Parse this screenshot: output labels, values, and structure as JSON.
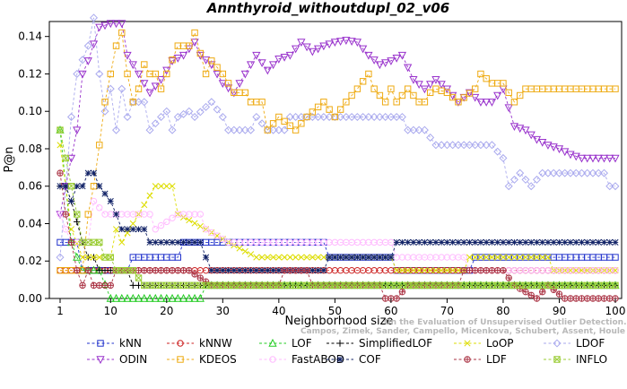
{
  "chart_data": {
    "type": "line",
    "title": "Annthyroid_withoutdupl_02_v06",
    "xlabel": "Neighborhood size",
    "ylabel": "P@n",
    "xlim": [
      1,
      100
    ],
    "ylim": [
      0,
      0.148
    ],
    "xticks": [
      1,
      10,
      20,
      30,
      40,
      50,
      60,
      70,
      80,
      90,
      100
    ],
    "yticks": [
      0.0,
      0.02,
      0.04,
      0.06,
      0.08,
      0.1,
      0.12,
      0.14
    ],
    "ytick_labels": [
      "0.00",
      "0.02",
      "0.04",
      "0.06",
      "0.08",
      "0.10",
      "0.12",
      "0.14"
    ],
    "grid": false,
    "legend_position": "bottom",
    "watermark": [
      "Campos, Zimek, Sander, Campello, Micenkova, Schubert, Assent, Houle",
      "On the Evaluation of Unsupervised Outlier Detection. DAMI, 2015."
    ],
    "series": [
      {
        "name": "kNN",
        "color": "#2233cc",
        "marker": "square",
        "points": [
          [
            1,
            0.03
          ],
          [
            4,
            0.03
          ],
          [
            5,
            0.015
          ],
          [
            13,
            0.015
          ],
          [
            14,
            0.022
          ],
          [
            22,
            0.022
          ],
          [
            23,
            0.03
          ],
          [
            48,
            0.03
          ],
          [
            49,
            0.022
          ],
          [
            60,
            0.022
          ],
          [
            61,
            0.015
          ],
          [
            74,
            0.015
          ],
          [
            75,
            0.022
          ],
          [
            100,
            0.022
          ]
        ]
      },
      {
        "name": "kNNW",
        "color": "#cc2222",
        "marker": "circle",
        "points": [
          [
            1,
            0.015
          ],
          [
            100,
            0.015
          ]
        ]
      },
      {
        "name": "LOF",
        "color": "#22cc22",
        "marker": "triangle",
        "points": [
          [
            1,
            0.09
          ],
          [
            2,
            0.06
          ],
          [
            3,
            0.03
          ],
          [
            4,
            0.022
          ],
          [
            5,
            0.015
          ],
          [
            8,
            0.015
          ],
          [
            10,
            0.0
          ],
          [
            26,
            0.0
          ],
          [
            27,
            0.007
          ],
          [
            100,
            0.007
          ],
          [
            100,
            0.0
          ]
        ]
      },
      {
        "name": "SimplifiedLOF",
        "color": "#000000",
        "marker": "plus",
        "points": [
          [
            1,
            0.06
          ],
          [
            2,
            0.06
          ],
          [
            3,
            0.052
          ],
          [
            5,
            0.03
          ],
          [
            6,
            0.022
          ],
          [
            7,
            0.022
          ],
          [
            8,
            0.015
          ],
          [
            13,
            0.015
          ],
          [
            14,
            0.007
          ],
          [
            100,
            0.007
          ]
        ]
      },
      {
        "name": "LoOP",
        "color": "#dddd00",
        "marker": "x",
        "points": [
          [
            1,
            0.082
          ],
          [
            2,
            0.06
          ],
          [
            3,
            0.037
          ],
          [
            5,
            0.022
          ],
          [
            10,
            0.022
          ],
          [
            11,
            0.037
          ],
          [
            12,
            0.03
          ],
          [
            15,
            0.045
          ],
          [
            18,
            0.06
          ],
          [
            21,
            0.06
          ],
          [
            22,
            0.045
          ],
          [
            27,
            0.037
          ],
          [
            31,
            0.03
          ],
          [
            36,
            0.022
          ],
          [
            60,
            0.022
          ],
          [
            61,
            0.015
          ],
          [
            73,
            0.015
          ],
          [
            74,
            0.022
          ],
          [
            88,
            0.022
          ],
          [
            89,
            0.015
          ],
          [
            100,
            0.015
          ]
        ]
      },
      {
        "name": "LDOF",
        "color": "#aaaaee",
        "marker": "diamond",
        "points": [
          [
            1,
            0.022
          ],
          [
            3,
            0.097
          ],
          [
            4,
            0.12
          ],
          [
            6,
            0.135
          ],
          [
            7,
            0.15
          ],
          [
            8,
            0.12
          ],
          [
            9,
            0.1
          ],
          [
            10,
            0.112
          ],
          [
            11,
            0.09
          ],
          [
            12,
            0.112
          ],
          [
            13,
            0.097
          ],
          [
            14,
            0.105
          ],
          [
            16,
            0.105
          ],
          [
            17,
            0.09
          ],
          [
            19,
            0.097
          ],
          [
            20,
            0.1
          ],
          [
            21,
            0.09
          ],
          [
            22,
            0.097
          ],
          [
            24,
            0.1
          ],
          [
            25,
            0.097
          ],
          [
            28,
            0.105
          ],
          [
            30,
            0.097
          ],
          [
            31,
            0.09
          ],
          [
            35,
            0.09
          ],
          [
            36,
            0.097
          ],
          [
            38,
            0.09
          ],
          [
            41,
            0.09
          ],
          [
            42,
            0.097
          ],
          [
            62,
            0.097
          ],
          [
            63,
            0.09
          ],
          [
            66,
            0.09
          ],
          [
            68,
            0.082
          ],
          [
            78,
            0.082
          ],
          [
            80,
            0.075
          ],
          [
            81,
            0.06
          ],
          [
            83,
            0.067
          ],
          [
            85,
            0.06
          ],
          [
            87,
            0.067
          ],
          [
            98,
            0.067
          ],
          [
            99,
            0.06
          ],
          [
            100,
            0.06
          ]
        ]
      },
      {
        "name": "ODIN",
        "color": "#9933cc",
        "marker": "triangle-down",
        "points": [
          [
            1,
            0.045
          ],
          [
            2,
            0.06
          ],
          [
            3,
            0.075
          ],
          [
            4,
            0.09
          ],
          [
            5,
            0.12
          ],
          [
            6,
            0.127
          ],
          [
            8,
            0.145
          ],
          [
            10,
            0.147
          ],
          [
            12,
            0.147
          ],
          [
            13,
            0.13
          ],
          [
            15,
            0.12
          ],
          [
            17,
            0.11
          ],
          [
            19,
            0.117
          ],
          [
            21,
            0.127
          ],
          [
            23,
            0.13
          ],
          [
            25,
            0.137
          ],
          [
            26,
            0.13
          ],
          [
            28,
            0.125
          ],
          [
            30,
            0.115
          ],
          [
            32,
            0.11
          ],
          [
            34,
            0.12
          ],
          [
            36,
            0.13
          ],
          [
            38,
            0.122
          ],
          [
            40,
            0.128
          ],
          [
            42,
            0.13
          ],
          [
            44,
            0.137
          ],
          [
            46,
            0.132
          ],
          [
            48,
            0.135
          ],
          [
            50,
            0.137
          ],
          [
            52,
            0.138
          ],
          [
            54,
            0.137
          ],
          [
            56,
            0.13
          ],
          [
            58,
            0.125
          ],
          [
            60,
            0.127
          ],
          [
            62,
            0.13
          ],
          [
            64,
            0.117
          ],
          [
            66,
            0.112
          ],
          [
            68,
            0.117
          ],
          [
            70,
            0.112
          ],
          [
            72,
            0.105
          ],
          [
            74,
            0.11
          ],
          [
            76,
            0.105
          ],
          [
            78,
            0.105
          ],
          [
            80,
            0.112
          ],
          [
            82,
            0.092
          ],
          [
            84,
            0.09
          ],
          [
            86,
            0.085
          ],
          [
            88,
            0.082
          ],
          [
            90,
            0.08
          ],
          [
            92,
            0.077
          ],
          [
            94,
            0.075
          ],
          [
            96,
            0.075
          ],
          [
            98,
            0.075
          ],
          [
            100,
            0.075
          ]
        ]
      },
      {
        "name": "KDEOS",
        "color": "#eeaa11",
        "marker": "square",
        "points": [
          [
            1,
            0.015
          ],
          [
            5,
            0.015
          ],
          [
            6,
            0.045
          ],
          [
            7,
            0.06
          ],
          [
            8,
            0.082
          ],
          [
            9,
            0.105
          ],
          [
            10,
            0.12
          ],
          [
            11,
            0.135
          ],
          [
            12,
            0.142
          ],
          [
            13,
            0.12
          ],
          [
            14,
            0.105
          ],
          [
            15,
            0.112
          ],
          [
            16,
            0.125
          ],
          [
            17,
            0.12
          ],
          [
            18,
            0.12
          ],
          [
            19,
            0.112
          ],
          [
            20,
            0.12
          ],
          [
            22,
            0.135
          ],
          [
            24,
            0.135
          ],
          [
            25,
            0.142
          ],
          [
            27,
            0.12
          ],
          [
            28,
            0.127
          ],
          [
            30,
            0.12
          ],
          [
            32,
            0.11
          ],
          [
            34,
            0.11
          ],
          [
            35,
            0.105
          ],
          [
            37,
            0.105
          ],
          [
            38,
            0.09
          ],
          [
            40,
            0.097
          ],
          [
            43,
            0.09
          ],
          [
            45,
            0.097
          ],
          [
            48,
            0.105
          ],
          [
            50,
            0.097
          ],
          [
            52,
            0.105
          ],
          [
            54,
            0.112
          ],
          [
            56,
            0.12
          ],
          [
            57,
            0.112
          ],
          [
            59,
            0.105
          ],
          [
            60,
            0.112
          ],
          [
            61,
            0.105
          ],
          [
            63,
            0.112
          ],
          [
            65,
            0.105
          ],
          [
            66,
            0.105
          ],
          [
            67,
            0.11
          ],
          [
            68,
            0.112
          ],
          [
            70,
            0.11
          ],
          [
            72,
            0.105
          ],
          [
            75,
            0.112
          ],
          [
            76,
            0.12
          ],
          [
            78,
            0.115
          ],
          [
            80,
            0.115
          ],
          [
            82,
            0.105
          ],
          [
            84,
            0.112
          ],
          [
            100,
            0.112
          ]
        ]
      },
      {
        "name": "FastABOD",
        "color": "#ffbbff",
        "marker": "circle",
        "points": [
          [
            1,
            0.045
          ],
          [
            2,
            0.037
          ],
          [
            3,
            0.03
          ],
          [
            5,
            0.03
          ],
          [
            6,
            0.03
          ],
          [
            7,
            0.052
          ],
          [
            9,
            0.045
          ],
          [
            17,
            0.045
          ],
          [
            18,
            0.037
          ],
          [
            22,
            0.045
          ],
          [
            26,
            0.045
          ],
          [
            27,
            0.037
          ],
          [
            31,
            0.03
          ],
          [
            60,
            0.03
          ],
          [
            61,
            0.022
          ],
          [
            73,
            0.022
          ],
          [
            74,
            0.015
          ],
          [
            100,
            0.015
          ]
        ]
      },
      {
        "name": "COF",
        "color": "#112266",
        "marker": "star",
        "points": [
          [
            1,
            0.06
          ],
          [
            2,
            0.06
          ],
          [
            3,
            0.052
          ],
          [
            4,
            0.06
          ],
          [
            5,
            0.06
          ],
          [
            6,
            0.067
          ],
          [
            7,
            0.067
          ],
          [
            8,
            0.06
          ],
          [
            10,
            0.052
          ],
          [
            11,
            0.045
          ],
          [
            12,
            0.037
          ],
          [
            16,
            0.037
          ],
          [
            17,
            0.03
          ],
          [
            20,
            0.03
          ],
          [
            26,
            0.03
          ],
          [
            27,
            0.022
          ],
          [
            28,
            0.015
          ],
          [
            48,
            0.015
          ],
          [
            49,
            0.022
          ],
          [
            60,
            0.022
          ],
          [
            61,
            0.03
          ],
          [
            100,
            0.03
          ]
        ]
      },
      {
        "name": "LDF",
        "color": "#aa3344",
        "marker": "circle-plus",
        "points": [
          [
            1,
            0.067
          ],
          [
            2,
            0.045
          ],
          [
            3,
            0.03
          ],
          [
            4,
            0.015
          ],
          [
            5,
            0.007
          ],
          [
            6,
            0.015
          ],
          [
            7,
            0.007
          ],
          [
            10,
            0.007
          ],
          [
            11,
            0.015
          ],
          [
            20,
            0.015
          ],
          [
            24,
            0.015
          ],
          [
            28,
            0.007
          ],
          [
            40,
            0.007
          ],
          [
            41,
            0.015
          ],
          [
            45,
            0.015
          ],
          [
            46,
            0.007
          ],
          [
            58,
            0.007
          ],
          [
            59,
            0.0
          ],
          [
            61,
            0.0
          ],
          [
            63,
            0.007
          ],
          [
            72,
            0.007
          ],
          [
            73,
            0.015
          ],
          [
            80,
            0.015
          ],
          [
            82,
            0.007
          ],
          [
            86,
            0.0
          ],
          [
            88,
            0.007
          ],
          [
            91,
            0.0
          ],
          [
            100,
            0.0
          ]
        ]
      },
      {
        "name": "INFLO",
        "color": "#99cc33",
        "marker": "square-x",
        "points": [
          [
            1,
            0.09
          ],
          [
            2,
            0.075
          ],
          [
            3,
            0.06
          ],
          [
            4,
            0.045
          ],
          [
            5,
            0.03
          ],
          [
            6,
            0.03
          ],
          [
            8,
            0.03
          ],
          [
            9,
            0.022
          ],
          [
            10,
            0.022
          ],
          [
            11,
            0.015
          ],
          [
            14,
            0.015
          ],
          [
            16,
            0.007
          ],
          [
            26,
            0.007
          ],
          [
            27,
            0.007
          ],
          [
            100,
            0.007
          ]
        ]
      }
    ]
  }
}
